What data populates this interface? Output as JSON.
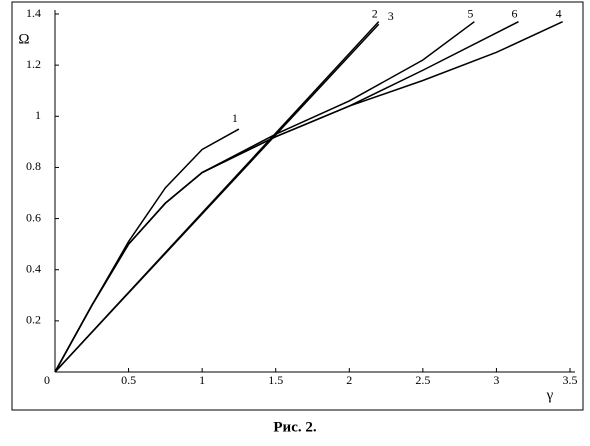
{
  "chart_data": {
    "type": "line",
    "caption": "Рис. 2.",
    "x_label": "γ",
    "y_label": "Ω",
    "xlim": [
      0,
      3.5
    ],
    "ylim": [
      0,
      1.4
    ],
    "xticks": [
      0,
      0.5,
      1,
      1.5,
      2,
      2.5,
      3,
      3.5
    ],
    "yticks": [
      0.2,
      0.4,
      0.6,
      0.8,
      1,
      1.2,
      1.4
    ],
    "series": [
      {
        "name": "1",
        "color": "#000000",
        "x": [
          0,
          0.25,
          0.5,
          0.75,
          1,
          1.25
        ],
        "values": [
          0,
          0.26,
          0.51,
          0.72,
          0.87,
          0.95
        ]
      },
      {
        "name": "2",
        "color": "#000000",
        "x": [
          0,
          2.2
        ],
        "values": [
          0,
          1.37
        ]
      },
      {
        "name": "3",
        "color": "#000000",
        "x": [
          0,
          2.2
        ],
        "values": [
          0,
          1.36
        ]
      },
      {
        "name": "4",
        "color": "#000000",
        "x": [
          0,
          0.25,
          0.5,
          0.75,
          1,
          1.5,
          2,
          2.5,
          3,
          3.45
        ],
        "values": [
          0,
          0.26,
          0.5,
          0.66,
          0.78,
          0.92,
          1.04,
          1.14,
          1.25,
          1.37
        ]
      },
      {
        "name": "5",
        "color": "#000000",
        "x": [
          0,
          0.25,
          0.5,
          0.75,
          1,
          1.5,
          2,
          2.5,
          2.85
        ],
        "values": [
          0,
          0.26,
          0.5,
          0.66,
          0.78,
          0.93,
          1.06,
          1.22,
          1.37
        ]
      },
      {
        "name": "6",
        "color": "#000000",
        "x": [
          0,
          0.25,
          0.5,
          0.75,
          1,
          1.5,
          2,
          2.5,
          3.15
        ],
        "values": [
          0,
          0.26,
          0.5,
          0.66,
          0.78,
          0.92,
          1.04,
          1.18,
          1.37
        ]
      }
    ]
  }
}
